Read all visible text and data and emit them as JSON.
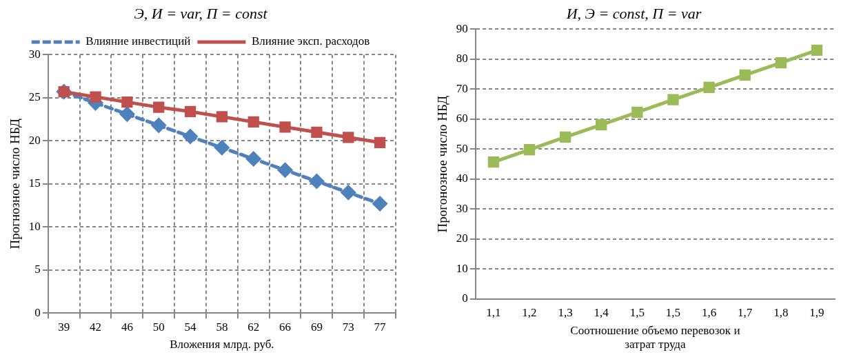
{
  "chart_data": [
    {
      "type": "line",
      "title": "Э, И = var, П = const",
      "xlabel": "Вложения млрд. руб.",
      "ylabel": "Прогнозное число НБД",
      "categories": [
        "39",
        "42",
        "46",
        "50",
        "54",
        "58",
        "62",
        "66",
        "69",
        "73",
        "77"
      ],
      "series": [
        {
          "name": "Влияние инвестиций",
          "color": "#4f81bd",
          "line_style": "dashed",
          "marker": "diamond",
          "values": [
            25.7,
            24.4,
            23.1,
            21.8,
            20.5,
            19.2,
            17.9,
            16.6,
            15.3,
            14.0,
            12.7
          ]
        },
        {
          "name": "Влияние эксп. расходов",
          "color": "#c0504d",
          "line_style": "solid",
          "marker": "square",
          "values": [
            25.7,
            25.1,
            24.5,
            23.9,
            23.4,
            22.8,
            22.2,
            21.6,
            21.0,
            20.4,
            19.8
          ]
        }
      ],
      "ylim": [
        0,
        30
      ],
      "yticks": [
        0,
        5,
        10,
        15,
        20,
        25,
        30
      ],
      "grid": true,
      "legend": "top"
    },
    {
      "type": "line",
      "title": "И, Э = const, П = var",
      "xlabel": "Соотношение объемо перевозок и затрат труда",
      "ylabel": "Прогонозное число НБД",
      "categories": [
        "1,1",
        "1,2",
        "1,3",
        "1,4",
        "1,5",
        "1,5",
        "1,6",
        "1,7",
        "1,8",
        "1,9"
      ],
      "series": [
        {
          "color": "#9bbb59",
          "line_style": "solid",
          "marker": "square",
          "values": [
            45.7,
            49.8,
            54.0,
            58.1,
            62.3,
            66.5,
            70.6,
            74.7,
            78.8,
            83.0
          ]
        }
      ],
      "ylim": [
        0,
        90
      ],
      "yticks": [
        0,
        10,
        20,
        30,
        40,
        50,
        60,
        70,
        80,
        90
      ],
      "grid": "y"
    }
  ]
}
